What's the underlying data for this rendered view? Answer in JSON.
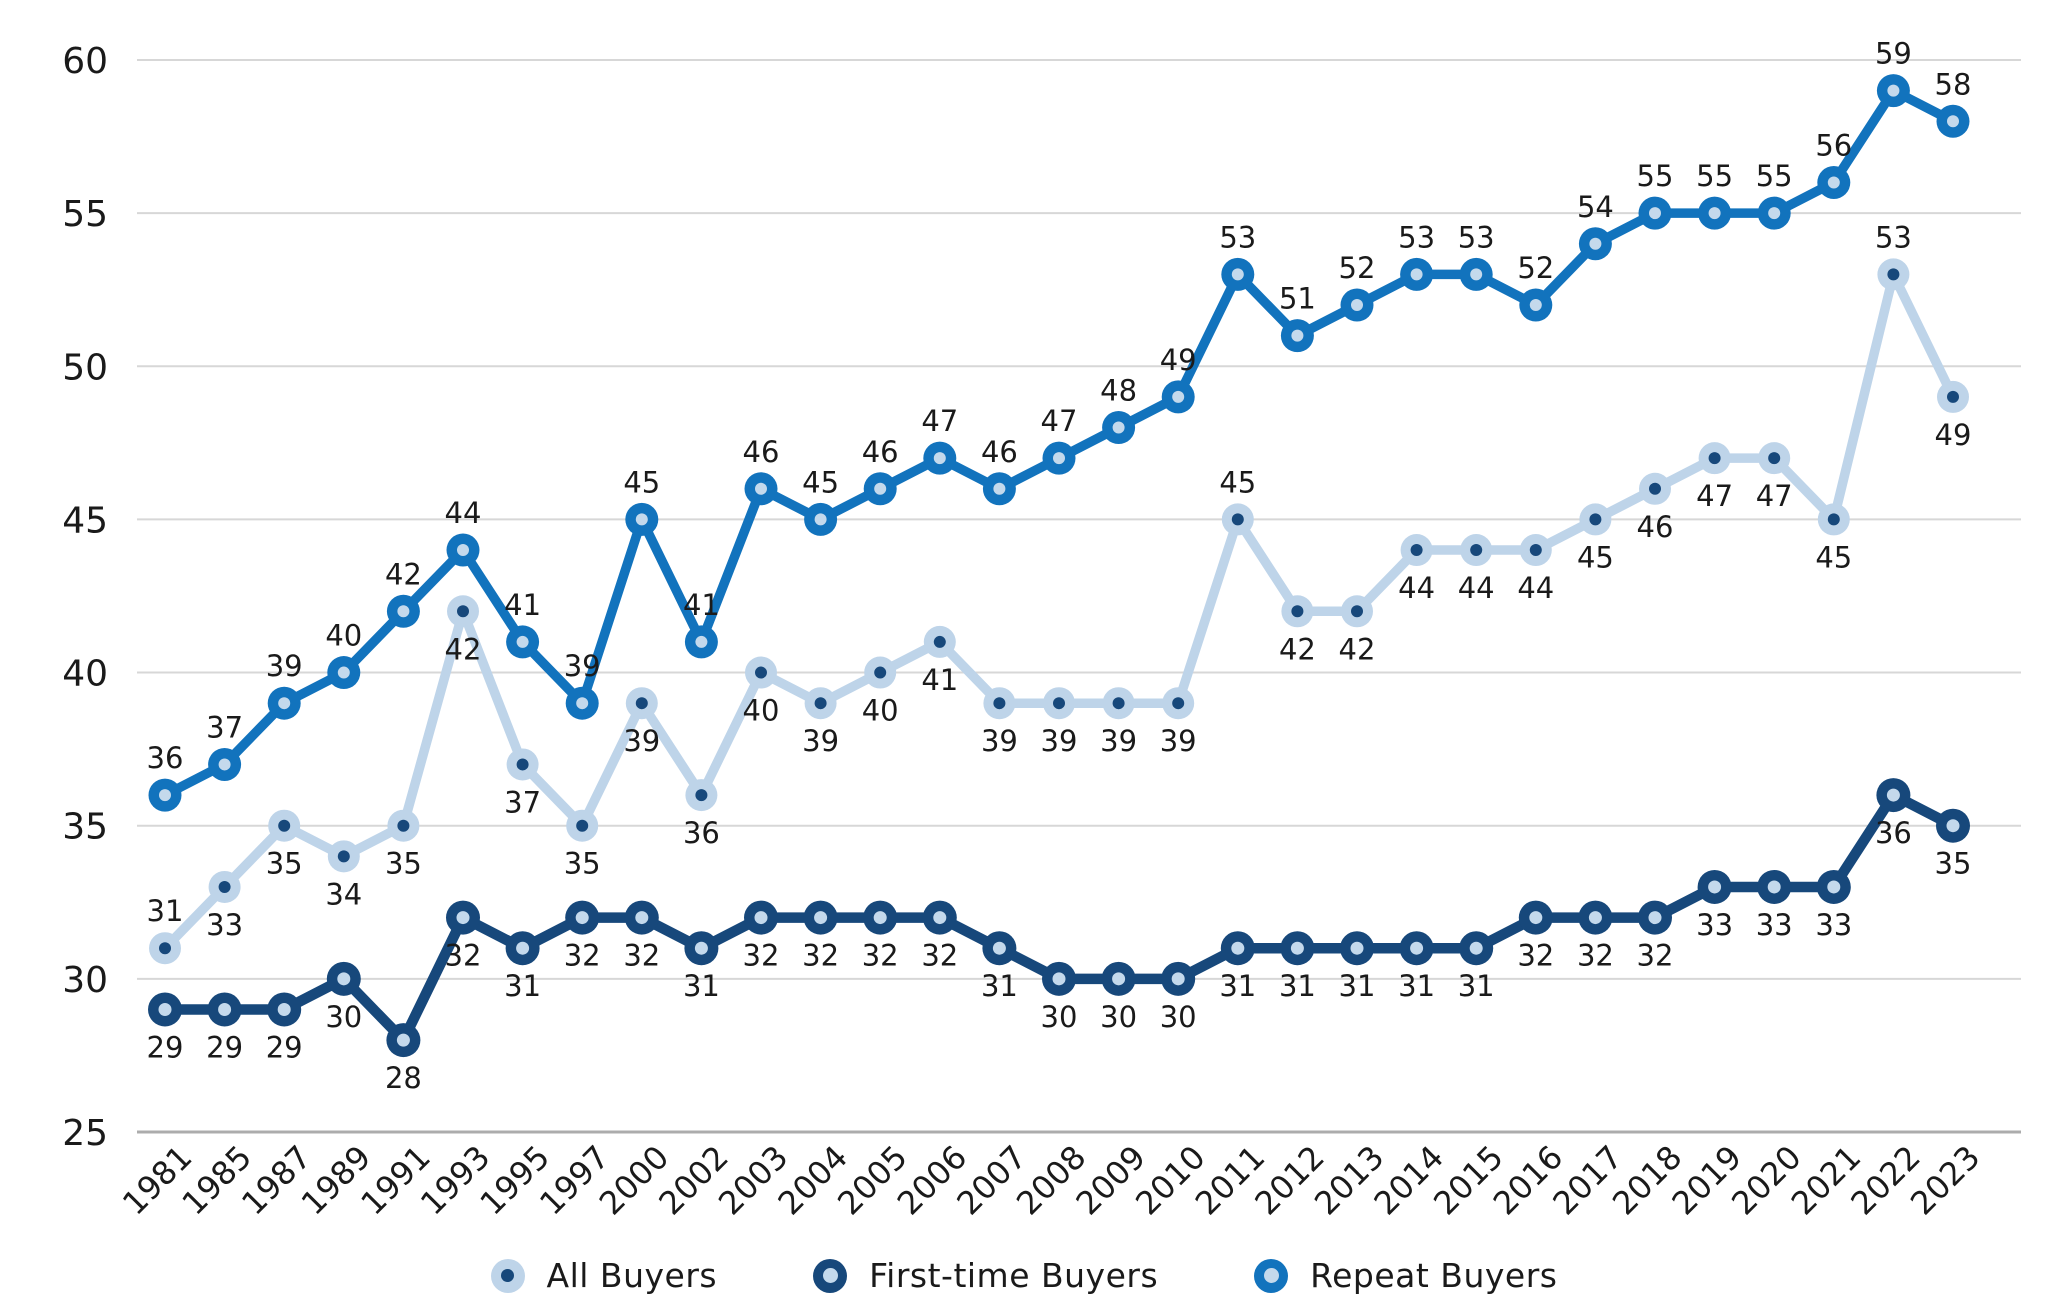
{
  "chart_data": {
    "type": "line",
    "title": "",
    "xlabel": "",
    "ylabel": "",
    "grid": "horizontal",
    "legend_position": "bottom",
    "text_color": "#1a1a1a",
    "grid_color": "#d7d7d7",
    "axis_line_color": "#acacac",
    "y_axis": {
      "min": 25,
      "max": 60,
      "ticks": [
        60,
        55,
        50,
        45,
        40,
        35,
        30,
        25
      ]
    },
    "categories": [
      "1981",
      "1985",
      "1987",
      "1989",
      "1991",
      "1993",
      "1995",
      "1997",
      "2000",
      "2002",
      "2003",
      "2004",
      "2005",
      "2006",
      "2007",
      "2008",
      "2009",
      "2010",
      "2011",
      "2012",
      "2013",
      "2014",
      "2015",
      "2016",
      "2017",
      "2018",
      "2019",
      "2020",
      "2021",
      "2022",
      "2023"
    ],
    "series": [
      {
        "name": "All Buyers",
        "line_color": "#BED4E9",
        "marker_dot_color": "#17487B",
        "label_side": "below",
        "label_side_overrides": {
          "1981": "above",
          "2011": "above",
          "2022": "above"
        },
        "values": [
          31,
          33,
          35,
          34,
          35,
          42,
          37,
          35,
          39,
          36,
          40,
          39,
          40,
          41,
          39,
          39,
          39,
          39,
          45,
          42,
          42,
          44,
          44,
          44,
          45,
          46,
          47,
          47,
          45,
          53,
          49
        ]
      },
      {
        "name": "First-time Buyers",
        "line_color": "#17487B",
        "marker_dot_color": "#C4D9EC",
        "label_side": "below",
        "label_side_overrides": {},
        "values": [
          29,
          29,
          29,
          30,
          28,
          32,
          31,
          32,
          32,
          31,
          32,
          32,
          32,
          32,
          31,
          30,
          30,
          30,
          31,
          31,
          31,
          31,
          31,
          32,
          32,
          32,
          33,
          33,
          33,
          36,
          35
        ]
      },
      {
        "name": "Repeat Buyers",
        "line_color": "#1273BD",
        "marker_dot_color": "#C4D9EC",
        "label_side": "above",
        "label_side_overrides": {},
        "values": [
          36,
          37,
          39,
          40,
          42,
          44,
          41,
          39,
          45,
          41,
          46,
          45,
          46,
          47,
          46,
          47,
          48,
          49,
          53,
          51,
          52,
          53,
          53,
          52,
          54,
          55,
          55,
          55,
          56,
          59,
          58
        ]
      }
    ]
  }
}
